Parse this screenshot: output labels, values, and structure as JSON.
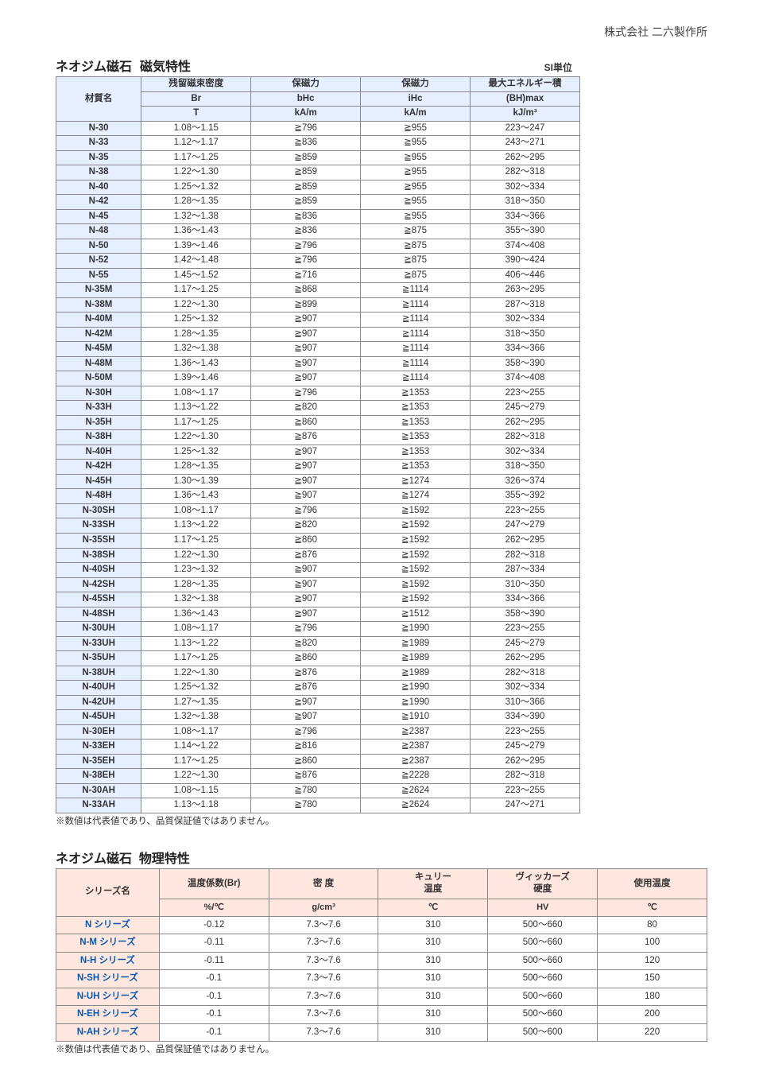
{
  "company": "株式会社 二六製作所",
  "section1": {
    "title_a": "ネオジム磁石",
    "title_b": "磁気特性",
    "si_unit": "SI単位",
    "head1": [
      "材質名",
      "残留磁束密度",
      "保磁力",
      "保磁力",
      "最大エネルギー積"
    ],
    "head2": [
      "Br",
      "bHc",
      "iHc",
      "(BH)max"
    ],
    "head3": [
      "T",
      "kA/m",
      "kA/m",
      "kJ/m³"
    ],
    "rows": [
      [
        "N-30",
        "1.08～1.15",
        "≧796",
        "≧955",
        "223～247"
      ],
      [
        "N-33",
        "1.12～1.17",
        "≧836",
        "≧955",
        "243～271"
      ],
      [
        "N-35",
        "1.17～1.25",
        "≧859",
        "≧955",
        "262～295"
      ],
      [
        "N-38",
        "1.22～1.30",
        "≧859",
        "≧955",
        "282～318"
      ],
      [
        "N-40",
        "1.25～1.32",
        "≧859",
        "≧955",
        "302～334"
      ],
      [
        "N-42",
        "1.28～1.35",
        "≧859",
        "≧955",
        "318～350"
      ],
      [
        "N-45",
        "1.32～1.38",
        "≧836",
        "≧955",
        "334～366"
      ],
      [
        "N-48",
        "1.36～1.43",
        "≧836",
        "≧875",
        "355～390"
      ],
      [
        "N-50",
        "1.39～1.46",
        "≧796",
        "≧875",
        "374～408"
      ],
      [
        "N-52",
        "1.42～1.48",
        "≧796",
        "≧875",
        "390～424"
      ],
      [
        "N-55",
        "1.45～1.52",
        "≧716",
        "≧875",
        "406～446"
      ],
      [
        "N-35M",
        "1.17～1.25",
        "≧868",
        "≧1114",
        "263～295"
      ],
      [
        "N-38M",
        "1.22～1.30",
        "≧899",
        "≧1114",
        "287～318"
      ],
      [
        "N-40M",
        "1.25～1.32",
        "≧907",
        "≧1114",
        "302～334"
      ],
      [
        "N-42M",
        "1.28～1.35",
        "≧907",
        "≧1114",
        "318～350"
      ],
      [
        "N-45M",
        "1.32～1.38",
        "≧907",
        "≧1114",
        "334～366"
      ],
      [
        "N-48M",
        "1.36～1.43",
        "≧907",
        "≧1114",
        "358～390"
      ],
      [
        "N-50M",
        "1.39～1.46",
        "≧907",
        "≧1114",
        "374～408"
      ],
      [
        "N-30H",
        "1.08～1.17",
        "≧796",
        "≧1353",
        "223～255"
      ],
      [
        "N-33H",
        "1.13～1.22",
        "≧820",
        "≧1353",
        "245～279"
      ],
      [
        "N-35H",
        "1.17～1.25",
        "≧860",
        "≧1353",
        "262～295"
      ],
      [
        "N-38H",
        "1.22～1.30",
        "≧876",
        "≧1353",
        "282～318"
      ],
      [
        "N-40H",
        "1.25～1.32",
        "≧907",
        "≧1353",
        "302～334"
      ],
      [
        "N-42H",
        "1.28～1.35",
        "≧907",
        "≧1353",
        "318～350"
      ],
      [
        "N-45H",
        "1.30～1.39",
        "≧907",
        "≧1274",
        "326～374"
      ],
      [
        "N-48H",
        "1.36～1.43",
        "≧907",
        "≧1274",
        "355～392"
      ],
      [
        "N-30SH",
        "1.08～1.17",
        "≧796",
        "≧1592",
        "223～255"
      ],
      [
        "N-33SH",
        "1.13～1.22",
        "≧820",
        "≧1592",
        "247～279"
      ],
      [
        "N-35SH",
        "1.17～1.25",
        "≧860",
        "≧1592",
        "262～295"
      ],
      [
        "N-38SH",
        "1.22～1.30",
        "≧876",
        "≧1592",
        "282～318"
      ],
      [
        "N-40SH",
        "1.23～1.32",
        "≧907",
        "≧1592",
        "287～334"
      ],
      [
        "N-42SH",
        "1.28～1.35",
        "≧907",
        "≧1592",
        "310～350"
      ],
      [
        "N-45SH",
        "1.32～1.38",
        "≧907",
        "≧1592",
        "334～366"
      ],
      [
        "N-48SH",
        "1.36～1.43",
        "≧907",
        "≧1512",
        "358～390"
      ],
      [
        "N-30UH",
        "1.08～1.17",
        "≧796",
        "≧1990",
        "223～255"
      ],
      [
        "N-33UH",
        "1.13～1.22",
        "≧820",
        "≧1989",
        "245～279"
      ],
      [
        "N-35UH",
        "1.17～1.25",
        "≧860",
        "≧1989",
        "262～295"
      ],
      [
        "N-38UH",
        "1.22～1.30",
        "≧876",
        "≧1989",
        "282～318"
      ],
      [
        "N-40UH",
        "1.25～1.32",
        "≧876",
        "≧1990",
        "302～334"
      ],
      [
        "N-42UH",
        "1.27～1.35",
        "≧907",
        "≧1990",
        "310～366"
      ],
      [
        "N-45UH",
        "1.32～1.38",
        "≧907",
        "≧1910",
        "334～390"
      ],
      [
        "N-30EH",
        "1.08～1.17",
        "≧796",
        "≧2387",
        "223～255"
      ],
      [
        "N-33EH",
        "1.14～1.22",
        "≧816",
        "≧2387",
        "245～279"
      ],
      [
        "N-35EH",
        "1.17～1.25",
        "≧860",
        "≧2387",
        "262～295"
      ],
      [
        "N-38EH",
        "1.22～1.30",
        "≧876",
        "≧2228",
        "282～318"
      ],
      [
        "N-30AH",
        "1.08～1.15",
        "≧780",
        "≧2624",
        "223～255"
      ],
      [
        "N-33AH",
        "1.13～1.18",
        "≧780",
        "≧2624",
        "247～271"
      ]
    ],
    "note": "※数値は代表値であり、品質保証値ではありません。"
  },
  "section2": {
    "title_a": "ネオジム磁石",
    "title_b": "物理特性",
    "head1": [
      "シリーズ名",
      "温度係数(Br)",
      "密 度",
      "キュリー\n温度",
      "ヴィッカーズ\n硬度",
      "使用温度"
    ],
    "head2": [
      "%/℃",
      "g/cm³",
      "℃",
      "HV",
      "℃"
    ],
    "rows": [
      [
        "N シリーズ",
        "-0.12",
        "7.3～7.6",
        "310",
        "500～660",
        "80"
      ],
      [
        "N-M シリーズ",
        "-0.11",
        "7.3～7.6",
        "310",
        "500～660",
        "100"
      ],
      [
        "N-H シリーズ",
        "-0.11",
        "7.3～7.6",
        "310",
        "500～660",
        "120"
      ],
      [
        "N-SH シリーズ",
        "-0.1",
        "7.3～7.6",
        "310",
        "500～660",
        "150"
      ],
      [
        "N-UH シリーズ",
        "-0.1",
        "7.3～7.6",
        "310",
        "500～660",
        "180"
      ],
      [
        "N-EH シリーズ",
        "-0.1",
        "7.3～7.6",
        "310",
        "500～660",
        "200"
      ],
      [
        "N-AH シリーズ",
        "-0.1",
        "7.3～7.6",
        "310",
        "500～600",
        "220"
      ]
    ],
    "note": "※数値は代表値であり、品質保証値ではありません。"
  }
}
